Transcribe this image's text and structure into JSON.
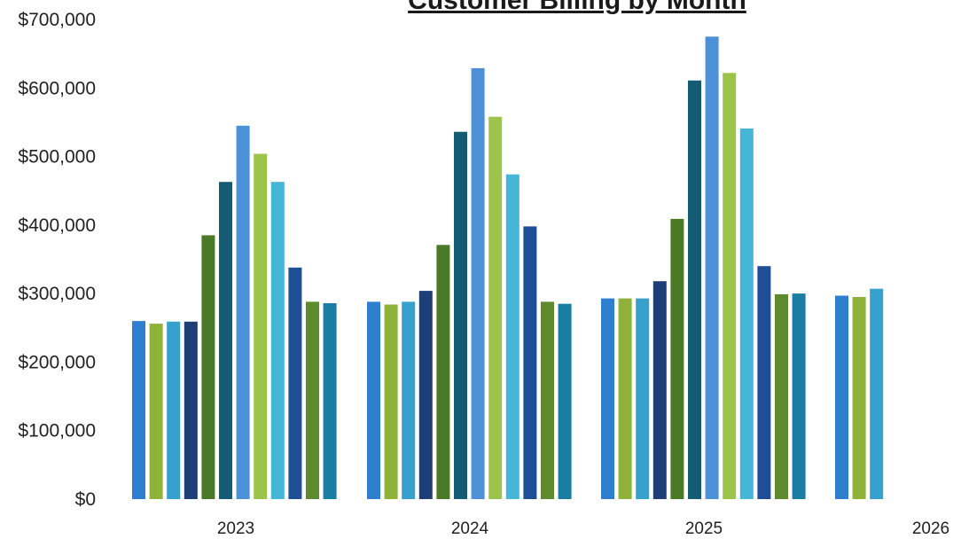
{
  "chart_data": {
    "type": "bar",
    "title": "Customer Billing by Month",
    "xlabel": "",
    "ylabel": "",
    "ylim": [
      0,
      700000
    ],
    "yticks": [
      "$0",
      "$100,000",
      "$200,000",
      "$300,000",
      "$400,000",
      "$500,000",
      "$600,000",
      "$700,000"
    ],
    "year_labels": [
      "2023",
      "2024",
      "2025",
      "2026"
    ],
    "grid": false,
    "legend": "none",
    "series": [
      {
        "year": "2023",
        "values": [
          260000,
          256000,
          259000,
          259000,
          385000,
          463000,
          545000,
          504000,
          463000,
          338000,
          288000,
          286000
        ]
      },
      {
        "year": "2024",
        "values": [
          288000,
          284000,
          288000,
          304000,
          371000,
          536000,
          629000,
          558000,
          474000,
          398000,
          288000,
          285000
        ]
      },
      {
        "year": "2025",
        "values": [
          293000,
          293000,
          293000,
          318000,
          409000,
          611000,
          675000,
          622000,
          541000,
          340000,
          299000,
          300000
        ]
      },
      {
        "year": "2026",
        "values": [
          297000,
          295000,
          307000
        ]
      }
    ],
    "month_colors": [
      "#2f7fd0",
      "#8fb23a",
      "#36a1cc",
      "#1d3f78",
      "#4a7a26",
      "#135c74",
      "#4c91d8",
      "#9cc44a",
      "#46b6d8",
      "#1d4e96",
      "#5c8a2c",
      "#1a7ea2"
    ]
  }
}
